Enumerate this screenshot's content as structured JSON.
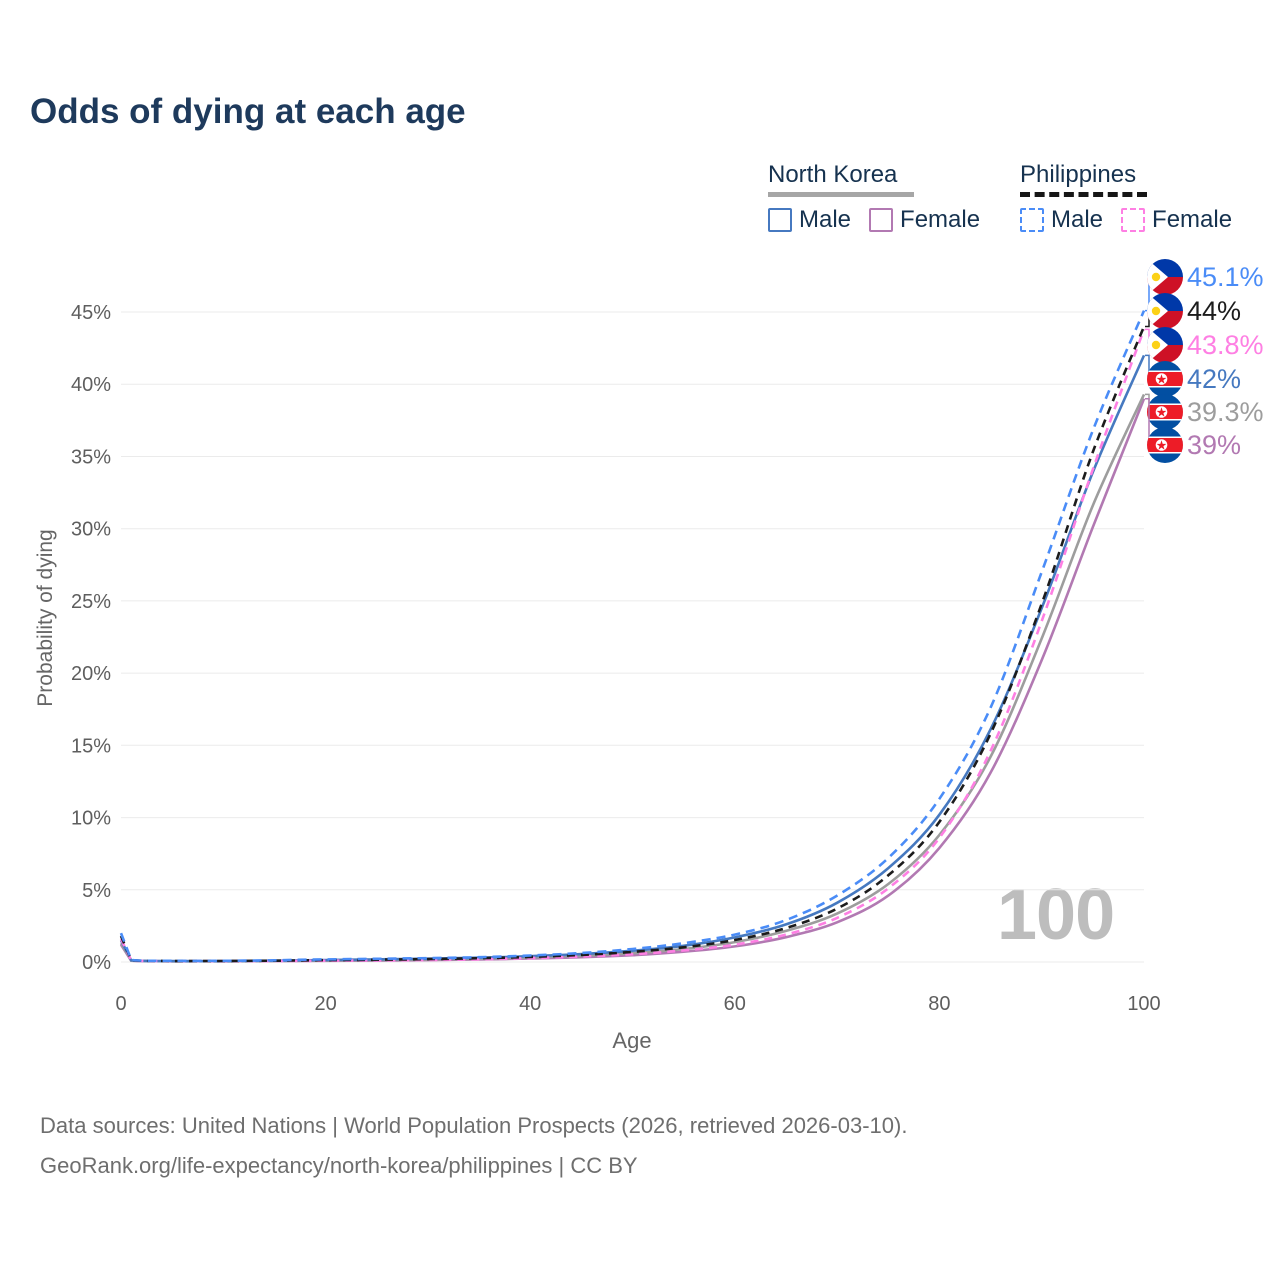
{
  "title": "Odds of dying at each age",
  "legend": {
    "groups": [
      {
        "label": "North Korea",
        "line_style": "solid",
        "line_color": "#a6a6a6",
        "items": [
          {
            "label": "Male",
            "color": "#4679c0",
            "style": "solid"
          },
          {
            "label": "Female",
            "color": "#b279b2",
            "style": "solid"
          }
        ]
      },
      {
        "label": "Philippines",
        "line_style": "dashed",
        "line_color": "#161616",
        "items": [
          {
            "label": "Male",
            "color": "#4a8cf7",
            "style": "dashed"
          },
          {
            "label": "Female",
            "color": "#fe7fe3",
            "style": "dashed"
          }
        ]
      }
    ]
  },
  "chart_data": {
    "type": "line",
    "title": "Odds of dying at each age",
    "xlabel": "Age",
    "ylabel": "Probability of dying",
    "x_ticks": [
      0,
      20,
      40,
      60,
      80,
      100
    ],
    "y_ticks": [
      0,
      5,
      10,
      15,
      20,
      25,
      30,
      35,
      40,
      45
    ],
    "y_tick_suffix": "%",
    "xlim": [
      0,
      100
    ],
    "ylim": [
      0,
      47
    ],
    "grid": true,
    "legend_position": "top-right",
    "watermark": "100",
    "ages": [
      0,
      1,
      5,
      10,
      15,
      20,
      25,
      30,
      35,
      40,
      45,
      50,
      55,
      60,
      65,
      70,
      75,
      80,
      85,
      90,
      95,
      100
    ],
    "series": [
      {
        "name": "North Korea Female",
        "color": "#b279b2",
        "dash": null,
        "values": [
          1.2,
          0.09,
          0.05,
          0.05,
          0.06,
          0.08,
          0.1,
          0.13,
          0.17,
          0.24,
          0.33,
          0.47,
          0.71,
          1.08,
          1.72,
          2.75,
          4.6,
          7.9,
          13.1,
          20.9,
          30.1,
          39.0
        ]
      },
      {
        "name": "North Korea Overall",
        "color": "#9d9d9d",
        "dash": null,
        "values": [
          1.3,
          0.1,
          0.05,
          0.05,
          0.07,
          0.1,
          0.13,
          0.17,
          0.23,
          0.31,
          0.43,
          0.61,
          0.9,
          1.38,
          2.15,
          3.35,
          5.4,
          8.8,
          14.2,
          22.4,
          31.6,
          39.3
        ]
      },
      {
        "name": "North Korea Male",
        "color": "#4679c0",
        "dash": null,
        "values": [
          1.5,
          0.12,
          0.06,
          0.06,
          0.09,
          0.14,
          0.18,
          0.23,
          0.3,
          0.4,
          0.55,
          0.78,
          1.12,
          1.7,
          2.6,
          4.1,
          6.5,
          10.2,
          16.1,
          24.5,
          33.9,
          42.0
        ]
      },
      {
        "name": "Philippines Female",
        "color": "#fe7fe3",
        "dash": "8 6",
        "values": [
          1.6,
          0.11,
          0.06,
          0.06,
          0.07,
          0.09,
          0.11,
          0.14,
          0.19,
          0.27,
          0.38,
          0.54,
          0.8,
          1.2,
          1.9,
          3.05,
          5.1,
          8.6,
          14.6,
          23.6,
          34.1,
          43.8
        ]
      },
      {
        "name": "Philippines Overall",
        "color": "#1c1c1c",
        "dash": "8 6",
        "values": [
          1.8,
          0.13,
          0.07,
          0.07,
          0.09,
          0.13,
          0.16,
          0.2,
          0.26,
          0.35,
          0.49,
          0.7,
          1.02,
          1.52,
          2.35,
          3.7,
          6.0,
          9.7,
          15.8,
          24.8,
          35.3,
          44.0
        ]
      },
      {
        "name": "Philippines Male",
        "color": "#4a8cf7",
        "dash": "9 6",
        "values": [
          2.0,
          0.15,
          0.08,
          0.08,
          0.12,
          0.18,
          0.22,
          0.27,
          0.33,
          0.45,
          0.62,
          0.9,
          1.3,
          1.9,
          2.9,
          4.6,
          7.2,
          11.3,
          17.6,
          27.0,
          36.8,
          45.1
        ]
      }
    ],
    "end_labels": [
      {
        "text": "45.1%",
        "value": 45.1,
        "color": "#4a8cf7",
        "flag": "philippines"
      },
      {
        "text": "44%",
        "value": 44.0,
        "color": "#1c1c1c",
        "flag": "philippines"
      },
      {
        "text": "43.8%",
        "value": 43.8,
        "color": "#fe7fe3",
        "flag": "philippines"
      },
      {
        "text": "42%",
        "value": 42.0,
        "color": "#4679c0",
        "flag": "north-korea"
      },
      {
        "text": "39.3%",
        "value": 39.3,
        "color": "#9d9d9d",
        "flag": "north-korea"
      },
      {
        "text": "39%",
        "value": 39.0,
        "color": "#b279b2",
        "flag": "north-korea"
      }
    ]
  },
  "footer": {
    "line1": "Data sources: United Nations | World Population Prospects (2026, retrieved 2026-03-10).",
    "line2": "GeoRank.org/life-expectancy/north-korea/philippines | CC BY"
  }
}
